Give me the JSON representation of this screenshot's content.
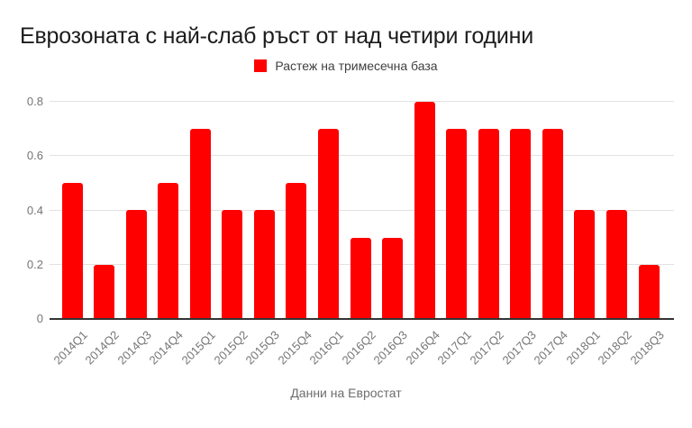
{
  "chart_data": {
    "type": "bar",
    "title": "Еврозоната с най-слаб ръст от над четири години",
    "legend": {
      "label": "Растеж на тримесечна база",
      "swatch_color": "#fe0000",
      "position": "top-center"
    },
    "footer": "Данни на Евростат",
    "categories": [
      "2014Q1",
      "2014Q2",
      "2014Q3",
      "2014Q4",
      "2015Q1",
      "2015Q2",
      "2015Q3",
      "2015Q4",
      "2016Q1",
      "2016Q2",
      "2016Q3",
      "2016Q4",
      "2017Q1",
      "2017Q2",
      "2017Q3",
      "2017Q4",
      "2018Q1",
      "2018Q2",
      "2018Q3"
    ],
    "values": [
      0.5,
      0.2,
      0.4,
      0.5,
      0.7,
      0.4,
      0.4,
      0.5,
      0.7,
      0.3,
      0.3,
      0.8,
      0.7,
      0.7,
      0.7,
      0.7,
      0.4,
      0.4,
      0.2
    ],
    "xlabel": "",
    "ylabel": "",
    "ylim": [
      0,
      0.8
    ],
    "yticks": [
      0,
      0.2,
      0.4,
      0.6,
      0.8
    ],
    "ytick_labels": [
      "0",
      "0.2",
      "0.4",
      "0.6",
      "0.8"
    ],
    "grid": true,
    "colors": {
      "bar": "#fe0000",
      "gridline": "#e2e2e2",
      "axis_line": "#333333",
      "tick_label": "#757575",
      "title": "#1c1c1c",
      "legend_text": "#404040",
      "footer_text": "#6d6d6d"
    }
  }
}
